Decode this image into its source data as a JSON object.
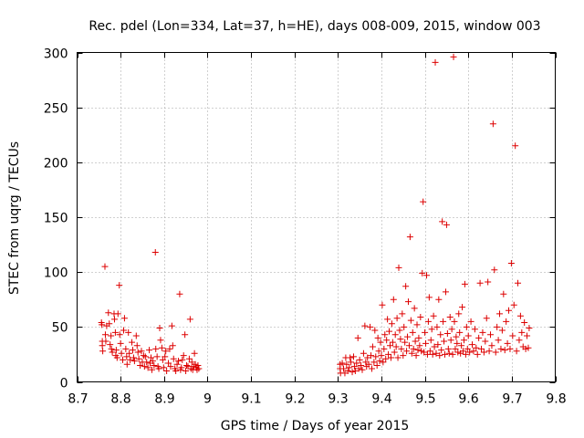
{
  "chart_data": {
    "type": "scatter",
    "title": "Rec. pdel (Lon=334, Lat=37, h=HE), days 008-009, 2015, window 003",
    "xlabel": "GPS time / Days of year 2015",
    "ylabel": "STEC from uqrg / TECUs",
    "xlim": [
      8.7,
      9.8
    ],
    "ylim": [
      0,
      300
    ],
    "grid": true,
    "x_ticks": [
      8.7,
      8.8,
      8.9,
      9.0,
      9.1,
      9.2,
      9.3,
      9.4,
      9.5,
      9.6,
      9.7,
      9.8
    ],
    "x_tick_labels": [
      "8.7",
      "8.8",
      "8.9",
      "9",
      "9.1",
      "9.2",
      "9.3",
      "9.4",
      "9.5",
      "9.6",
      "9.7",
      "9.8"
    ],
    "y_ticks": [
      0,
      50,
      100,
      150,
      200,
      250,
      300
    ],
    "y_tick_labels": [
      "0",
      "50",
      "100",
      "150",
      "200",
      "250",
      "300"
    ],
    "marker": "+",
    "color": "#dd0000",
    "series": [
      {
        "name": "STEC",
        "points": [
          [
            8.756,
            54
          ],
          [
            8.757,
            52
          ],
          [
            8.758,
            37
          ],
          [
            8.758,
            33
          ],
          [
            8.759,
            28
          ],
          [
            8.764,
            105
          ],
          [
            8.765,
            43
          ],
          [
            8.766,
            37
          ],
          [
            8.768,
            51
          ],
          [
            8.772,
            63
          ],
          [
            8.774,
            53
          ],
          [
            8.776,
            34
          ],
          [
            8.778,
            42
          ],
          [
            8.779,
            30
          ],
          [
            8.781,
            27
          ],
          [
            8.785,
            62
          ],
          [
            8.786,
            57
          ],
          [
            8.788,
            45
          ],
          [
            8.789,
            24
          ],
          [
            8.79,
            29
          ],
          [
            8.792,
            22
          ],
          [
            8.794,
            62
          ],
          [
            8.797,
            88
          ],
          [
            8.798,
            43
          ],
          [
            8.8,
            35
          ],
          [
            8.802,
            26
          ],
          [
            8.805,
            20
          ],
          [
            8.807,
            47
          ],
          [
            8.809,
            58
          ],
          [
            8.812,
            30
          ],
          [
            8.814,
            23
          ],
          [
            8.815,
            16
          ],
          [
            8.818,
            45
          ],
          [
            8.82,
            26
          ],
          [
            8.822,
            20
          ],
          [
            8.826,
            36
          ],
          [
            8.828,
            29
          ],
          [
            8.83,
            22
          ],
          [
            8.832,
            19
          ],
          [
            8.836,
            42
          ],
          [
            8.838,
            33
          ],
          [
            8.84,
            27
          ],
          [
            8.842,
            21
          ],
          [
            8.845,
            15
          ],
          [
            8.848,
            28
          ],
          [
            8.85,
            18
          ],
          [
            8.853,
            24
          ],
          [
            8.855,
            14
          ],
          [
            8.857,
            23
          ],
          [
            8.86,
            18
          ],
          [
            8.863,
            13
          ],
          [
            8.866,
            29
          ],
          [
            8.868,
            17
          ],
          [
            8.87,
            22
          ],
          [
            8.872,
            11
          ],
          [
            8.874,
            19
          ],
          [
            8.877,
            15
          ],
          [
            8.88,
            118
          ],
          [
            8.881,
            30
          ],
          [
            8.884,
            23
          ],
          [
            8.886,
            14
          ],
          [
            8.888,
            12
          ],
          [
            8.89,
            49
          ],
          [
            8.892,
            38
          ],
          [
            8.895,
            31
          ],
          [
            8.897,
            20
          ],
          [
            8.899,
            13
          ],
          [
            8.902,
            23
          ],
          [
            8.904,
            28
          ],
          [
            8.906,
            10
          ],
          [
            8.91,
            17
          ],
          [
            8.913,
            30
          ],
          [
            8.915,
            14
          ],
          [
            8.918,
            51
          ],
          [
            8.92,
            33
          ],
          [
            8.922,
            21
          ],
          [
            8.925,
            12
          ],
          [
            8.927,
            10
          ],
          [
            8.93,
            16
          ],
          [
            8.933,
            19
          ],
          [
            8.936,
            80
          ],
          [
            8.938,
            11
          ],
          [
            8.94,
            13
          ],
          [
            8.942,
            20
          ],
          [
            8.945,
            24
          ],
          [
            8.948,
            43
          ],
          [
            8.95,
            10
          ],
          [
            8.952,
            15
          ],
          [
            8.955,
            14
          ],
          [
            8.958,
            21
          ],
          [
            8.96,
            57
          ],
          [
            8.962,
            12
          ],
          [
            8.964,
            18
          ],
          [
            8.966,
            11
          ],
          [
            8.968,
            14
          ],
          [
            8.97,
            26
          ],
          [
            8.972,
            16
          ],
          [
            8.974,
            13
          ],
          [
            8.976,
            11
          ],
          [
            8.978,
            15
          ],
          [
            8.98,
            12
          ],
          [
            9.305,
            16
          ],
          [
            9.305,
            12
          ],
          [
            9.306,
            8
          ],
          [
            9.31,
            17
          ],
          [
            9.313,
            12
          ],
          [
            9.316,
            8
          ],
          [
            9.318,
            22
          ],
          [
            9.32,
            16
          ],
          [
            9.323,
            10
          ],
          [
            9.326,
            13
          ],
          [
            9.328,
            22
          ],
          [
            9.33,
            18
          ],
          [
            9.333,
            9
          ],
          [
            9.336,
            23
          ],
          [
            9.338,
            14
          ],
          [
            9.34,
            10
          ],
          [
            9.343,
            17
          ],
          [
            9.346,
            40
          ],
          [
            9.348,
            12
          ],
          [
            9.35,
            20
          ],
          [
            9.353,
            15
          ],
          [
            9.356,
            11
          ],
          [
            9.359,
            26
          ],
          [
            9.362,
            51
          ],
          [
            9.364,
            18
          ],
          [
            9.366,
            14
          ],
          [
            9.368,
            22
          ],
          [
            9.371,
            16
          ],
          [
            9.374,
            50
          ],
          [
            9.376,
            24
          ],
          [
            9.378,
            12
          ],
          [
            9.38,
            32
          ],
          [
            9.383,
            18
          ],
          [
            9.385,
            47
          ],
          [
            9.387,
            23
          ],
          [
            9.39,
            15
          ],
          [
            9.392,
            40
          ],
          [
            9.394,
            28
          ],
          [
            9.396,
            19
          ],
          [
            9.398,
            36
          ],
          [
            9.4,
            24
          ],
          [
            9.402,
            70
          ],
          [
            9.404,
            18
          ],
          [
            9.406,
            30
          ],
          [
            9.408,
            43
          ],
          [
            9.41,
            21
          ],
          [
            9.412,
            38
          ],
          [
            9.414,
            57
          ],
          [
            9.416,
            25
          ],
          [
            9.418,
            46
          ],
          [
            9.42,
            33
          ],
          [
            9.422,
            22
          ],
          [
            9.424,
            53
          ],
          [
            9.426,
            36
          ],
          [
            9.428,
            75
          ],
          [
            9.43,
            27
          ],
          [
            9.432,
            43
          ],
          [
            9.434,
            32
          ],
          [
            9.436,
            58
          ],
          [
            9.438,
            22
          ],
          [
            9.44,
            104
          ],
          [
            9.442,
            47
          ],
          [
            9.444,
            39
          ],
          [
            9.446,
            30
          ],
          [
            9.448,
            62
          ],
          [
            9.45,
            24
          ],
          [
            9.452,
            50
          ],
          [
            9.454,
            36
          ],
          [
            9.456,
            87
          ],
          [
            9.458,
            28
          ],
          [
            9.46,
            41
          ],
          [
            9.462,
            73
          ],
          [
            9.464,
            33
          ],
          [
            9.466,
            132
          ],
          [
            9.468,
            56
          ],
          [
            9.47,
            26
          ],
          [
            9.472,
            45
          ],
          [
            9.474,
            30
          ],
          [
            9.476,
            67
          ],
          [
            9.478,
            37
          ],
          [
            9.48,
            24
          ],
          [
            9.482,
            52
          ],
          [
            9.484,
            29
          ],
          [
            9.486,
            40
          ],
          [
            9.488,
            33
          ],
          [
            9.49,
            59
          ],
          [
            9.492,
            28
          ],
          [
            9.494,
            99
          ],
          [
            9.496,
            164
          ],
          [
            9.498,
            27
          ],
          [
            9.5,
            45
          ],
          [
            9.502,
            35
          ],
          [
            9.504,
            97
          ],
          [
            9.506,
            25
          ],
          [
            9.508,
            55
          ],
          [
            9.51,
            77
          ],
          [
            9.512,
            28
          ],
          [
            9.514,
            38
          ],
          [
            9.516,
            48
          ],
          [
            9.518,
            25
          ],
          [
            9.52,
            60
          ],
          [
            9.522,
            32
          ],
          [
            9.524,
            291
          ],
          [
            9.526,
            26
          ],
          [
            9.528,
            50
          ],
          [
            9.53,
            34
          ],
          [
            9.532,
            75
          ],
          [
            9.534,
            24
          ],
          [
            9.536,
            43
          ],
          [
            9.538,
            29
          ],
          [
            9.54,
            146
          ],
          [
            9.542,
            55
          ],
          [
            9.544,
            37
          ],
          [
            9.546,
            25
          ],
          [
            9.548,
            82
          ],
          [
            9.55,
            143
          ],
          [
            9.552,
            44
          ],
          [
            9.554,
            30
          ],
          [
            9.556,
            26
          ],
          [
            9.558,
            59
          ],
          [
            9.56,
            38
          ],
          [
            9.562,
            48
          ],
          [
            9.564,
            25
          ],
          [
            9.566,
            296
          ],
          [
            9.568,
            55
          ],
          [
            9.57,
            30
          ],
          [
            9.572,
            41
          ],
          [
            9.574,
            35
          ],
          [
            9.576,
            27
          ],
          [
            9.578,
            62
          ],
          [
            9.58,
            45
          ],
          [
            9.582,
            26
          ],
          [
            9.584,
            33
          ],
          [
            9.586,
            68
          ],
          [
            9.588,
            28
          ],
          [
            9.59,
            38
          ],
          [
            9.592,
            89
          ],
          [
            9.594,
            25
          ],
          [
            9.596,
            50
          ],
          [
            9.598,
            30
          ],
          [
            9.6,
            42
          ],
          [
            9.603,
            27
          ],
          [
            9.606,
            55
          ],
          [
            9.609,
            34
          ],
          [
            9.612,
            28
          ],
          [
            9.615,
            48
          ],
          [
            9.618,
            31
          ],
          [
            9.621,
            25
          ],
          [
            9.624,
            40
          ],
          [
            9.627,
            90
          ],
          [
            9.63,
            30
          ],
          [
            9.633,
            45
          ],
          [
            9.636,
            27
          ],
          [
            9.639,
            37
          ],
          [
            9.642,
            58
          ],
          [
            9.645,
            91
          ],
          [
            9.648,
            28
          ],
          [
            9.651,
            43
          ],
          [
            9.654,
            33
          ],
          [
            9.657,
            235
          ],
          [
            9.66,
            102
          ],
          [
            9.663,
            27
          ],
          [
            9.666,
            50
          ],
          [
            9.669,
            38
          ],
          [
            9.672,
            62
          ],
          [
            9.675,
            30
          ],
          [
            9.678,
            47
          ],
          [
            9.681,
            80
          ],
          [
            9.684,
            29
          ],
          [
            9.687,
            55
          ],
          [
            9.69,
            35
          ],
          [
            9.693,
            65
          ],
          [
            9.696,
            30
          ],
          [
            9.699,
            108
          ],
          [
            9.702,
            42
          ],
          [
            9.705,
            70
          ],
          [
            9.708,
            215
          ],
          [
            9.711,
            28
          ],
          [
            9.714,
            90
          ],
          [
            9.717,
            38
          ],
          [
            9.72,
            60
          ],
          [
            9.723,
            45
          ],
          [
            9.726,
            32
          ],
          [
            9.729,
            54
          ],
          [
            9.732,
            30
          ],
          [
            9.735,
            42
          ],
          [
            9.738,
            31
          ],
          [
            9.74,
            49
          ]
        ]
      }
    ]
  }
}
